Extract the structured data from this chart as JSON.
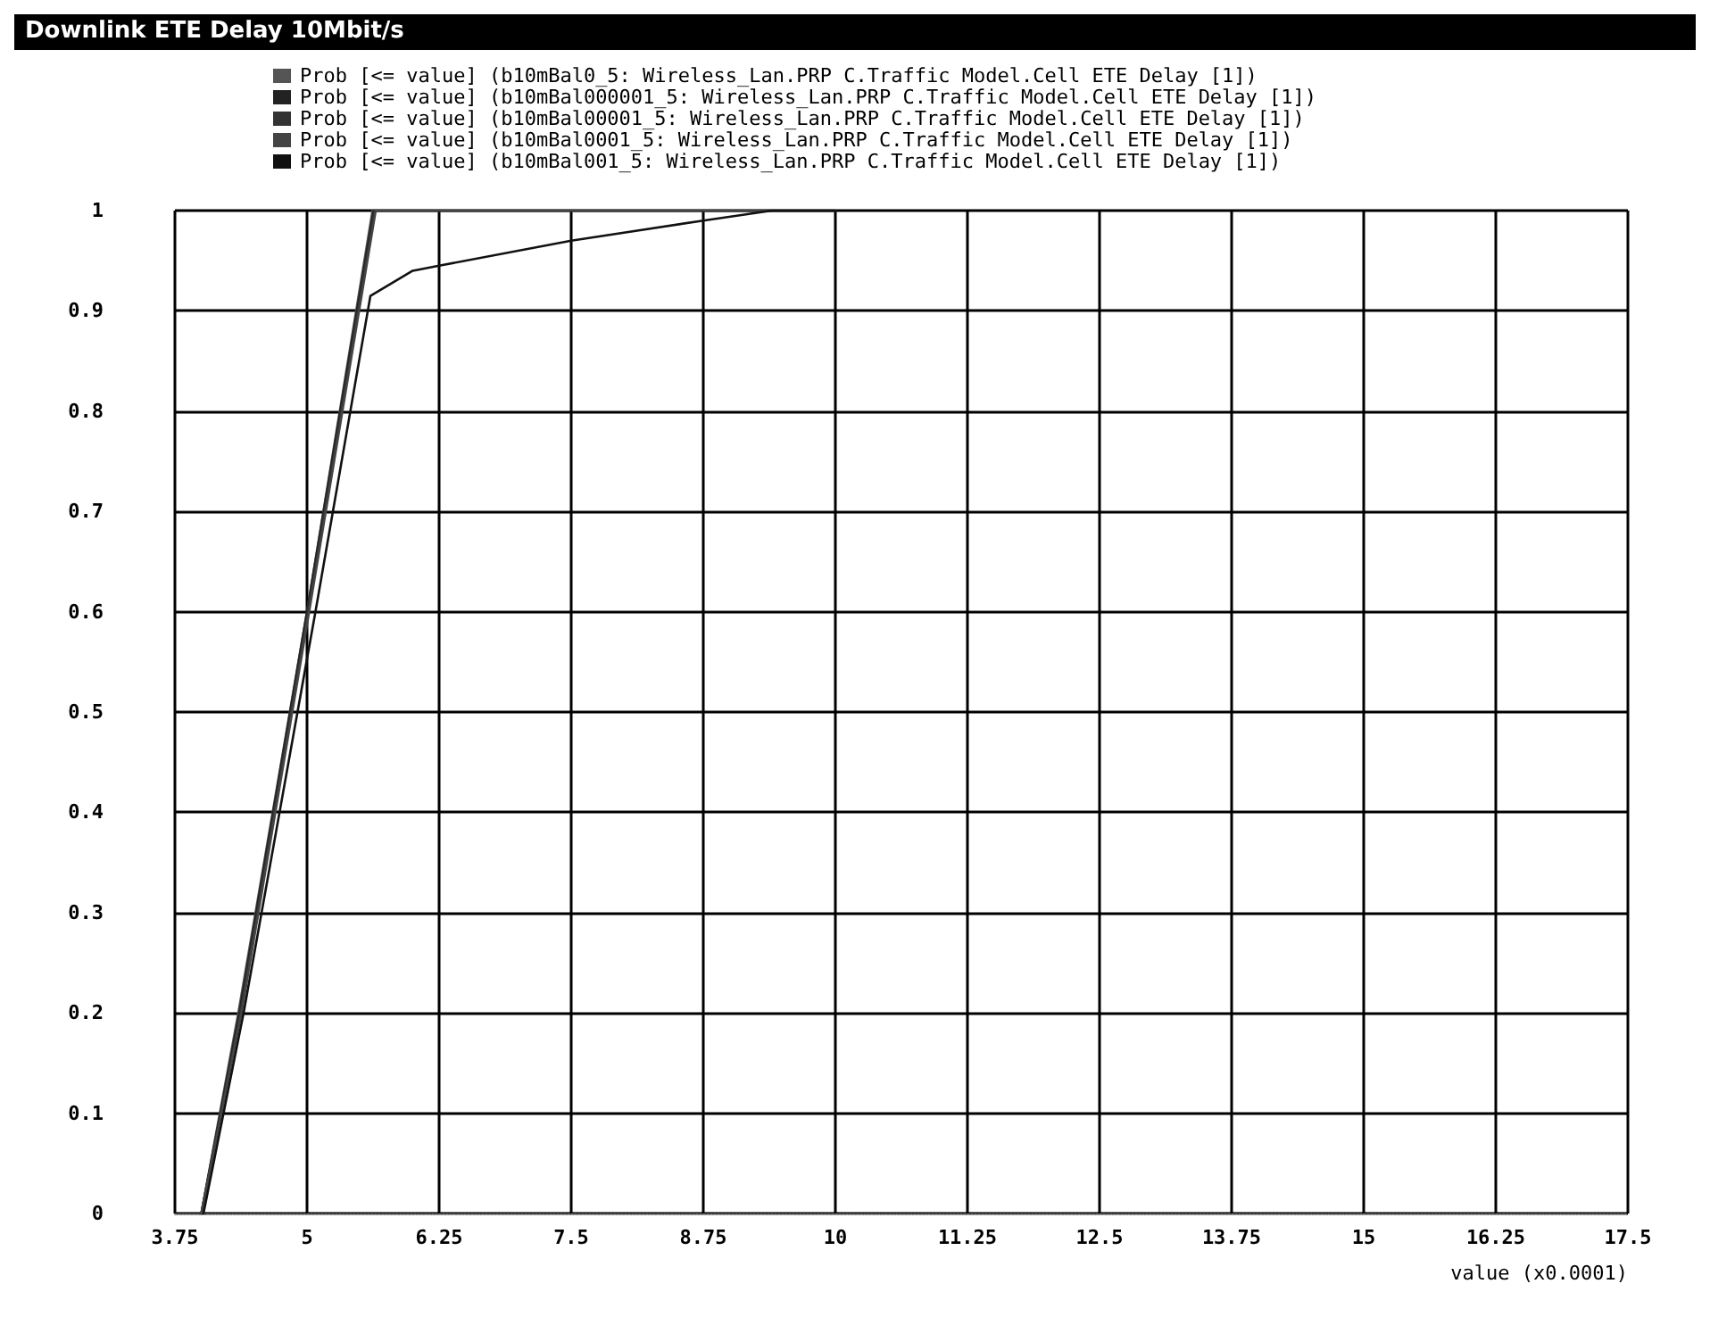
{
  "chart_data": {
    "type": "line",
    "title": "Downlink ETE Delay 10Mbit/s",
    "xlabel": "value (x0.0001)",
    "xlim": [
      3.75,
      17.5
    ],
    "xticks": [
      3.75,
      5,
      6.25,
      7.5,
      8.75,
      10,
      11.25,
      12.5,
      13.75,
      15,
      16.25,
      17.5
    ],
    "ylim": [
      0,
      1
    ],
    "yticks": [
      0,
      0.1,
      0.2,
      0.3,
      0.4,
      0.5,
      0.6,
      0.7,
      0.8,
      0.9,
      1
    ],
    "grid": true,
    "legend": "top left",
    "marker": "none",
    "line_style": "solid",
    "series": [
      {
        "name": "Prob [<= value] (b10mBal0_5: Wireless_Lan.PRP C.Traffic Model.Cell ETE Delay [1])",
        "color": "#555555",
        "x": [
          4.0,
          4.35,
          5.0,
          5.62,
          10
        ],
        "values": [
          0,
          0.2,
          0.6,
          1,
          1
        ]
      },
      {
        "name": "Prob [<= value] (b10mBal000001_5: Wireless_Lan.PRP C.Traffic Model.Cell ETE Delay [1])",
        "color": "#222222",
        "x": [
          4.0,
          4.36,
          5.0,
          5.63,
          10
        ],
        "values": [
          0,
          0.2,
          0.6,
          1,
          1
        ]
      },
      {
        "name": "Prob [<= value] (b10mBal00001_5: Wireless_Lan.PRP C.Traffic Model.Cell ETE Delay [1])",
        "color": "#333333",
        "x": [
          4.0,
          4.37,
          5.01,
          5.64,
          10
        ],
        "values": [
          0,
          0.2,
          0.6,
          1,
          1
        ]
      },
      {
        "name": "Prob [<= value] (b10mBal0001_5: Wireless_Lan.PRP C.Traffic Model.Cell ETE Delay [1])",
        "color": "#444444",
        "x": [
          4.0,
          4.38,
          5.02,
          5.65,
          10
        ],
        "values": [
          0,
          0.2,
          0.6,
          1,
          1
        ]
      },
      {
        "name": "Prob [<= value] (b10mBal001_5: Wireless_Lan.PRP C.Traffic Model.Cell ETE Delay [1])",
        "color": "#111111",
        "x": [
          4.02,
          4.4,
          5.08,
          5.6,
          6.0,
          6.25,
          7.5,
          8.75,
          9.4,
          10
        ],
        "values": [
          0,
          0.2,
          0.6,
          0.915,
          0.94,
          0.945,
          0.97,
          0.99,
          1,
          1
        ]
      }
    ]
  }
}
